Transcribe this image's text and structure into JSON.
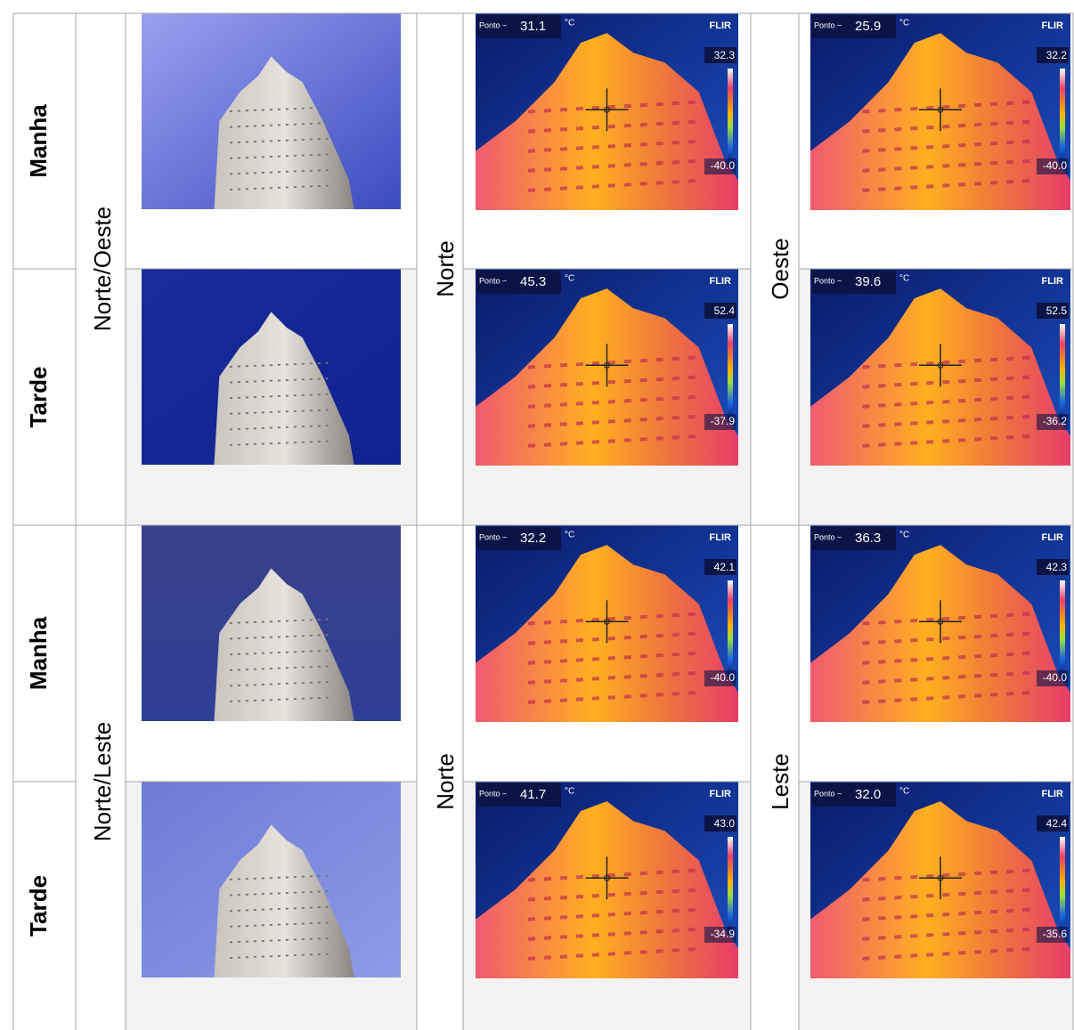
{
  "groups": [
    {
      "orientation": "Norte/Oeste",
      "faces": [
        "Norte",
        "Oeste"
      ],
      "rows": [
        {
          "period": "Manha",
          "thermal": [
            {
              "label": "Ponto ~",
              "spot": "31.1",
              "unit": "°C",
              "brand": "FLIR",
              "max": "32.3",
              "min": "-40.0"
            },
            {
              "label": "Ponto ~",
              "spot": "25.9",
              "unit": "°C",
              "brand": "FLIR",
              "max": "32.2",
              "min": "-40.0"
            }
          ]
        },
        {
          "period": "Tarde",
          "thermal": [
            {
              "label": "Ponto ~",
              "spot": "45.3",
              "unit": "°C",
              "brand": "FLIR",
              "max": "52.4",
              "min": "-37.9"
            },
            {
              "label": "Ponto ~",
              "spot": "39.6",
              "unit": "°C",
              "brand": "FLIR",
              "max": "52.5",
              "min": "-36.2"
            }
          ]
        }
      ]
    },
    {
      "orientation": "Norte/Leste",
      "faces": [
        "Norte",
        "Leste"
      ],
      "rows": [
        {
          "period": "Manha",
          "thermal": [
            {
              "label": "Ponto ~",
              "spot": "32.2",
              "unit": "°C",
              "brand": "FLIR",
              "max": "42.1",
              "min": "-40.0"
            },
            {
              "label": "Ponto ~",
              "spot": "36.3",
              "unit": "°C",
              "brand": "FLIR",
              "max": "42.3",
              "min": "-40.0"
            }
          ]
        },
        {
          "period": "Tarde",
          "thermal": [
            {
              "label": "Ponto ~",
              "spot": "41.7",
              "unit": "°C",
              "brand": "FLIR",
              "max": "43.0",
              "min": "-34.9"
            },
            {
              "label": "Ponto ~",
              "spot": "32.0",
              "unit": "°C",
              "brand": "FLIR",
              "max": "42.4",
              "min": "-35.6"
            }
          ]
        }
      ]
    }
  ]
}
